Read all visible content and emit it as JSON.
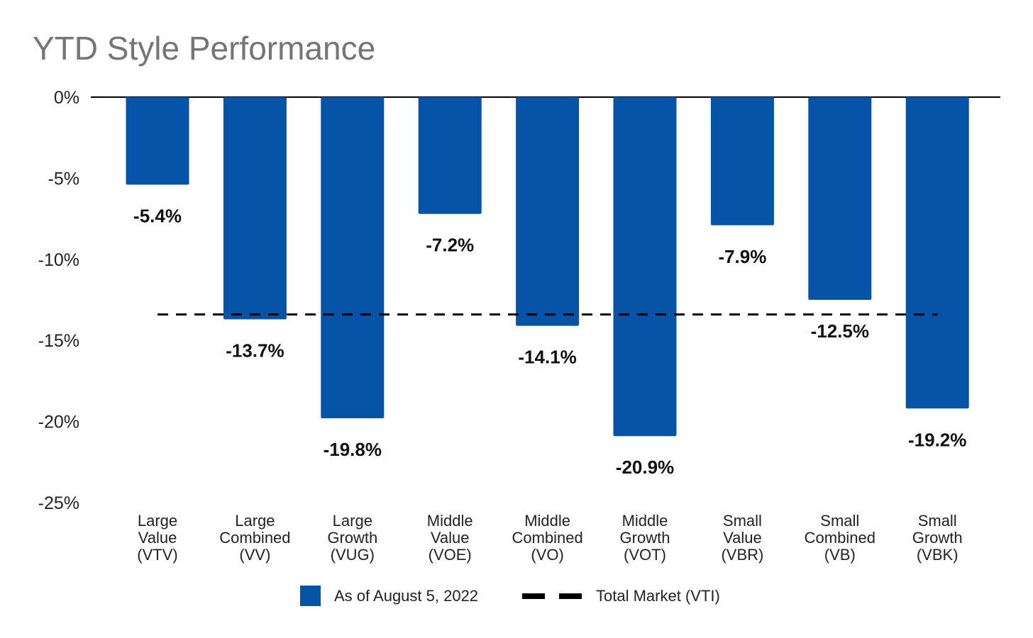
{
  "chart_data": {
    "type": "bar",
    "title": "YTD Style Performance",
    "xlabel": "",
    "ylabel": "",
    "ylim": [
      -25,
      0
    ],
    "yticks": [
      {
        "value": 0,
        "label": "0%"
      },
      {
        "value": -5,
        "label": "-5%"
      },
      {
        "value": -10,
        "label": "-10%"
      },
      {
        "value": -15,
        "label": "-15%"
      },
      {
        "value": -20,
        "label": "-20%"
      },
      {
        "value": -25,
        "label": "-25%"
      }
    ],
    "categories": [
      [
        "Large",
        "Value",
        "(VTV)"
      ],
      [
        "Large",
        "Combined",
        "(VV)"
      ],
      [
        "Large",
        "Growth",
        "(VUG)"
      ],
      [
        "Middle",
        "Value",
        "(VOE)"
      ],
      [
        "Middle",
        "Combined",
        "(VO)"
      ],
      [
        "Middle",
        "Growth",
        "(VOT)"
      ],
      [
        "Small",
        "Value",
        "(VBR)"
      ],
      [
        "Small",
        "Combined",
        "(VB)"
      ],
      [
        "Small",
        "Growth",
        "(VBK)"
      ]
    ],
    "series": [
      {
        "name": "As of August 5, 2022",
        "color": "#0453a6",
        "values": [
          -5.4,
          -13.7,
          -19.8,
          -7.2,
          -14.1,
          -20.9,
          -7.9,
          -12.5,
          -19.2
        ],
        "labels": [
          "-5.4%",
          "-13.7%",
          "-19.8%",
          "-7.2%",
          "-14.1%",
          "-20.9%",
          "-7.9%",
          "-12.5%",
          "-19.2%"
        ]
      }
    ],
    "reference_line": {
      "name": "Total Market (VTI)",
      "value": -13.4,
      "color": "#000000",
      "style": "dashed"
    },
    "grid": false,
    "legend_position": "bottom"
  }
}
